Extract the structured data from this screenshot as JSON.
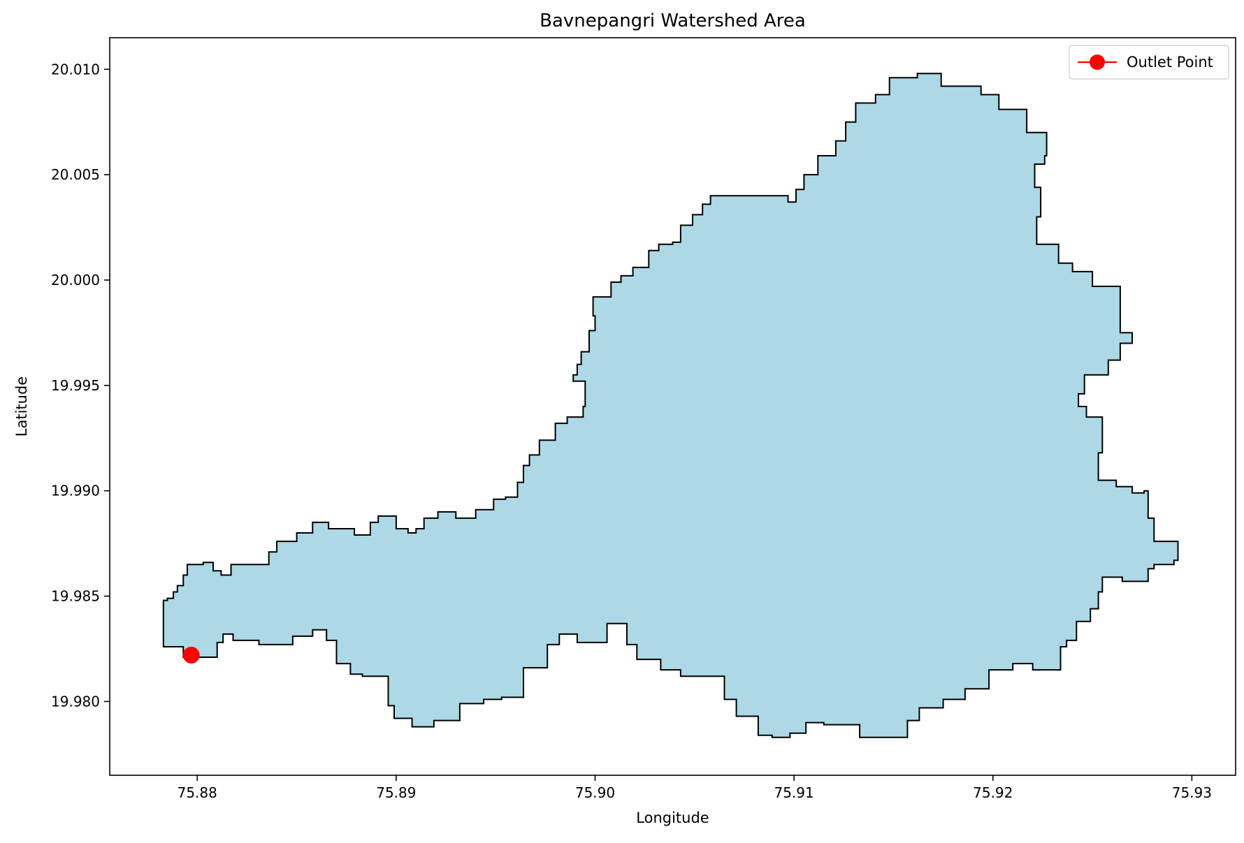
{
  "chart_data": {
    "type": "map",
    "title": "Bavnepangri Watershed Area",
    "xlabel": "Longitude",
    "ylabel": "Latitude",
    "xlim": [
      75.8756,
      75.9322
    ],
    "ylim": [
      19.9765,
      20.0115
    ],
    "x_ticks": [
      "75.88",
      "75.89",
      "75.90",
      "75.91",
      "75.92",
      "75.93"
    ],
    "x_tick_values": [
      75.88,
      75.89,
      75.9,
      75.91,
      75.92,
      75.93
    ],
    "y_ticks": [
      "19.980",
      "19.985",
      "19.990",
      "19.995",
      "20.000",
      "20.005",
      "20.010"
    ],
    "y_tick_values": [
      19.98,
      19.985,
      19.99,
      19.995,
      20.0,
      20.005,
      20.01
    ],
    "grid": false,
    "legend": {
      "position": "top-right",
      "entries": [
        "Outlet Point"
      ]
    },
    "colors": {
      "fill": "#add8e6",
      "outline": "#000000",
      "outlet": "#ff0000"
    },
    "outlet_point": {
      "name": "Outlet Point",
      "lon": 75.8797,
      "lat": 19.9822
    },
    "boundary": [
      [
        75.8783,
        19.9837
      ],
      [
        75.8793,
        19.9826
      ],
      [
        75.8797,
        19.9821
      ],
      [
        75.881,
        19.9821
      ],
      [
        75.8813,
        19.9828
      ],
      [
        75.8818,
        19.9832
      ],
      [
        75.8831,
        19.9829
      ],
      [
        75.8848,
        19.9827
      ],
      [
        75.8858,
        19.9831
      ],
      [
        75.8865,
        19.9834
      ],
      [
        75.887,
        19.9829
      ],
      [
        75.8877,
        19.9818
      ],
      [
        75.8883,
        19.9813
      ],
      [
        75.8896,
        19.9812
      ],
      [
        75.8899,
        19.9798
      ],
      [
        75.8908,
        19.9792
      ],
      [
        75.8919,
        19.9788
      ],
      [
        75.8932,
        19.9791
      ],
      [
        75.8944,
        19.9799
      ],
      [
        75.8953,
        19.9801
      ],
      [
        75.8964,
        19.9802
      ],
      [
        75.8976,
        19.9816
      ],
      [
        75.8982,
        19.9827
      ],
      [
        75.8991,
        19.9832
      ],
      [
        75.9006,
        19.9828
      ],
      [
        75.9016,
        19.9837
      ],
      [
        75.9021,
        19.9827
      ],
      [
        75.9033,
        19.982
      ],
      [
        75.9043,
        19.9815
      ],
      [
        75.9065,
        19.9812
      ],
      [
        75.9071,
        19.9801
      ],
      [
        75.9082,
        19.9793
      ],
      [
        75.9089,
        19.9784
      ],
      [
        75.9098,
        19.9783
      ],
      [
        75.9106,
        19.9785
      ],
      [
        75.9115,
        19.979
      ],
      [
        75.9133,
        19.9789
      ],
      [
        75.9143,
        19.9783
      ],
      [
        75.9157,
        19.9783
      ],
      [
        75.9163,
        19.9791
      ],
      [
        75.9175,
        19.9797
      ],
      [
        75.9186,
        19.9801
      ],
      [
        75.9198,
        19.9806
      ],
      [
        75.921,
        19.9815
      ],
      [
        75.922,
        19.9818
      ],
      [
        75.9234,
        19.9815
      ],
      [
        75.9237,
        19.9826
      ],
      [
        75.9242,
        19.9829
      ],
      [
        75.9249,
        19.9838
      ],
      [
        75.9253,
        19.9844
      ],
      [
        75.9255,
        19.9852
      ],
      [
        75.9265,
        19.9859
      ],
      [
        75.9278,
        19.9857
      ],
      [
        75.9281,
        19.9863
      ],
      [
        75.9291,
        19.9865
      ],
      [
        75.9293,
        19.9867
      ],
      [
        75.9292,
        19.9876
      ],
      [
        75.9281,
        19.9876
      ],
      [
        75.9278,
        19.9887
      ],
      [
        75.9276,
        19.99
      ],
      [
        75.927,
        19.9899
      ],
      [
        75.9262,
        19.9902
      ],
      [
        75.9253,
        19.9905
      ],
      [
        75.9255,
        19.9918
      ],
      [
        75.9247,
        19.9935
      ],
      [
        75.9243,
        19.994
      ],
      [
        75.9246,
        19.9946
      ],
      [
        75.9258,
        19.9955
      ],
      [
        75.9264,
        19.9962
      ],
      [
        75.927,
        19.997
      ],
      [
        75.9264,
        19.9975
      ],
      [
        75.9264,
        19.9991
      ],
      [
        75.925,
        19.9997
      ],
      [
        75.924,
        20.0004
      ],
      [
        75.9233,
        20.0008
      ],
      [
        75.9222,
        20.0017
      ],
      [
        75.9222,
        20.0023
      ],
      [
        75.9224,
        20.003
      ],
      [
        75.9221,
        20.0044
      ],
      [
        75.9226,
        20.0055
      ],
      [
        75.9227,
        20.0059
      ],
      [
        75.9217,
        20.007
      ],
      [
        75.9203,
        20.0081
      ],
      [
        75.9194,
        20.0088
      ],
      [
        75.9174,
        20.0092
      ],
      [
        75.9162,
        20.0098
      ],
      [
        75.9148,
        20.0096
      ],
      [
        75.9141,
        20.0088
      ],
      [
        75.9131,
        20.0084
      ],
      [
        75.9126,
        20.0075
      ],
      [
        75.9121,
        20.0066
      ],
      [
        75.9112,
        20.0059
      ],
      [
        75.9105,
        20.005
      ],
      [
        75.9101,
        20.0043
      ],
      [
        75.9097,
        20.0037
      ],
      [
        75.9085,
        20.004
      ],
      [
        75.9058,
        20.004
      ],
      [
        75.9054,
        20.0036
      ],
      [
        75.9049,
        20.0031
      ],
      [
        75.9043,
        20.0026
      ],
      [
        75.9039,
        20.0018
      ],
      [
        75.9032,
        20.0017
      ],
      [
        75.9027,
        20.0014
      ],
      [
        75.9019,
        20.0006
      ],
      [
        75.9013,
        20.0002
      ],
      [
        75.9008,
        19.9999
      ],
      [
        75.8999,
        19.9992
      ],
      [
        75.9,
        19.9983
      ],
      [
        75.8997,
        19.9976
      ],
      [
        75.8993,
        19.9966
      ],
      [
        75.8991,
        19.996
      ],
      [
        75.8989,
        19.9955
      ],
      [
        75.8995,
        19.9952
      ],
      [
        75.8994,
        19.994
      ],
      [
        75.8986,
        19.9935
      ],
      [
        75.898,
        19.9932
      ],
      [
        75.8972,
        19.9924
      ],
      [
        75.8967,
        19.9917
      ],
      [
        75.8964,
        19.9912
      ],
      [
        75.8961,
        19.9904
      ],
      [
        75.8955,
        19.9897
      ],
      [
        75.8949,
        19.9896
      ],
      [
        75.894,
        19.9891
      ],
      [
        75.893,
        19.9887
      ],
      [
        75.8921,
        19.989
      ],
      [
        75.8914,
        19.9887
      ],
      [
        75.891,
        19.9882
      ],
      [
        75.8906,
        19.988
      ],
      [
        75.89,
        19.9882
      ],
      [
        75.8898,
        19.9888
      ],
      [
        75.8891,
        19.9888
      ],
      [
        75.8887,
        19.9885
      ],
      [
        75.8879,
        19.9879
      ],
      [
        75.8866,
        19.9882
      ],
      [
        75.8858,
        19.9885
      ],
      [
        75.885,
        19.988
      ],
      [
        75.884,
        19.9876
      ],
      [
        75.8836,
        19.9871
      ],
      [
        75.8835,
        19.9865
      ],
      [
        75.8817,
        19.9865
      ],
      [
        75.8812,
        19.986
      ],
      [
        75.8808,
        19.9862
      ],
      [
        75.8803,
        19.9866
      ],
      [
        75.8795,
        19.9865
      ],
      [
        75.8793,
        19.986
      ],
      [
        75.879,
        19.9855
      ],
      [
        75.8788,
        19.9852
      ],
      [
        75.8785,
        19.9849
      ],
      [
        75.8783,
        19.9848
      ]
    ]
  }
}
